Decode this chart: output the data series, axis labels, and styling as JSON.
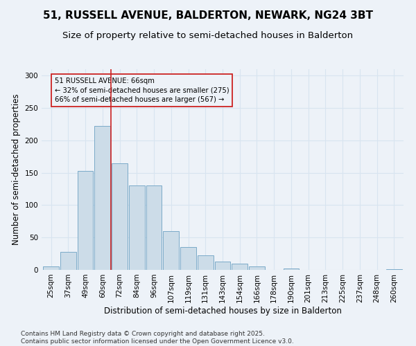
{
  "title1": "51, RUSSELL AVENUE, BALDERTON, NEWARK, NG24 3BT",
  "title2": "Size of property relative to semi-detached houses in Balderton",
  "xlabel": "Distribution of semi-detached houses by size in Balderton",
  "ylabel": "Number of semi-detached properties",
  "footnote": "Contains HM Land Registry data © Crown copyright and database right 2025.\nContains public sector information licensed under the Open Government Licence v3.0.",
  "bins": [
    "25sqm",
    "37sqm",
    "49sqm",
    "60sqm",
    "72sqm",
    "84sqm",
    "96sqm",
    "107sqm",
    "119sqm",
    "131sqm",
    "143sqm",
    "154sqm",
    "166sqm",
    "178sqm",
    "190sqm",
    "201sqm",
    "213sqm",
    "225sqm",
    "237sqm",
    "248sqm",
    "260sqm"
  ],
  "values": [
    5,
    28,
    153,
    222,
    165,
    130,
    130,
    60,
    35,
    22,
    13,
    10,
    5,
    0,
    2,
    0,
    0,
    0,
    0,
    0,
    1
  ],
  "bar_color": "#ccdce8",
  "bar_edge_color": "#7aaac8",
  "vline_x": 3.5,
  "vline_color": "#cc2222",
  "property_label": "51 RUSSELL AVENUE: 66sqm",
  "pct_smaller": 32,
  "n_smaller": 275,
  "pct_larger": 66,
  "n_larger": 567,
  "annotation_box_edge_color": "#cc2222",
  "ylim": [
    0,
    310
  ],
  "yticks": [
    0,
    50,
    100,
    150,
    200,
    250,
    300
  ],
  "bg_color": "#edf2f8",
  "grid_color": "#d8e4f0",
  "title1_fontsize": 11,
  "title2_fontsize": 9.5,
  "axis_label_fontsize": 8.5,
  "tick_fontsize": 7.5,
  "footnote_fontsize": 6.5
}
